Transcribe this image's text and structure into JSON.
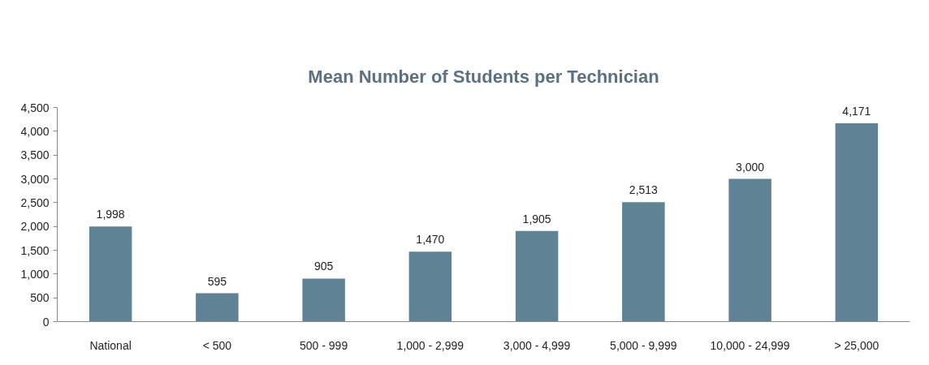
{
  "chart_data": {
    "type": "bar",
    "title": "Mean Number of Students per Technician",
    "categories": [
      "National",
      "< 500",
      "500 - 999",
      "1,000 - 2,999",
      "3,000 - 4,999",
      "5,000 - 9,999",
      "10,000 - 24,999",
      "> 25,000"
    ],
    "values": [
      1998,
      595,
      905,
      1470,
      1905,
      2513,
      3000,
      4171
    ],
    "color": "#5f8294",
    "ylim": [
      0,
      4500
    ],
    "yticks": [
      0,
      {
        "value": 500,
        "label": "500"
      },
      {
        "value": 1000,
        "label": "1,000"
      },
      {
        "value": 1500,
        "label": "1,500"
      },
      {
        "value": 2000,
        "label": "2,000"
      },
      {
        "value": 2500,
        "label": "2,500"
      },
      {
        "value": 3000,
        "label": "3,000"
      },
      {
        "value": 3500,
        "label": "3,500"
      },
      {
        "value": 4000,
        "label": "4,000"
      },
      {
        "value": 4500,
        "label": "4,500"
      }
    ],
    "value_labels": [
      "1,998",
      "595",
      "905",
      "1,470",
      "1,905",
      "2,513",
      "3,000",
      "4,171"
    ],
    "grid": false
  }
}
